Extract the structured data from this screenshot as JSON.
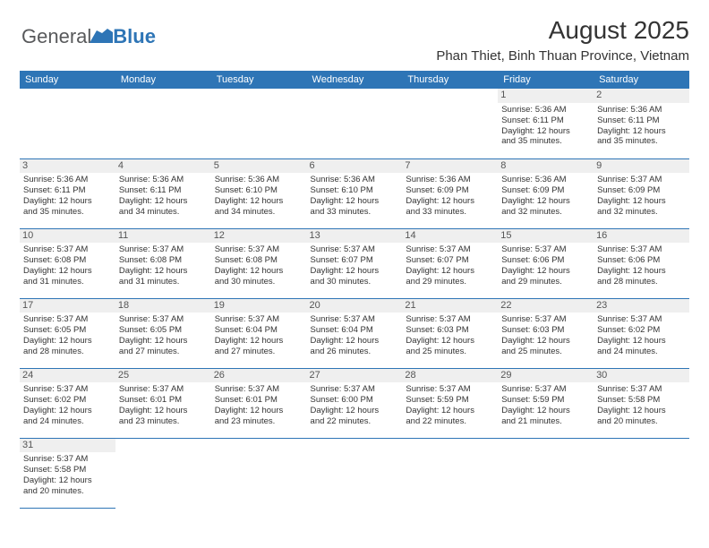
{
  "logo": {
    "part1": "General",
    "part2": "Blue"
  },
  "header": {
    "month_title": "August 2025",
    "location": "Phan Thiet, Binh Thuan Province, Vietnam"
  },
  "colors": {
    "header_bg": "#2e75b6",
    "header_text": "#ffffff",
    "daynum_bg": "#efefef",
    "border": "#2e75b6",
    "text": "#333333"
  },
  "day_headers": [
    "Sunday",
    "Monday",
    "Tuesday",
    "Wednesday",
    "Thursday",
    "Friday",
    "Saturday"
  ],
  "weeks": [
    [
      {
        "day": "",
        "sunrise": "",
        "sunset": "",
        "daylight1": "",
        "daylight2": ""
      },
      {
        "day": "",
        "sunrise": "",
        "sunset": "",
        "daylight1": "",
        "daylight2": ""
      },
      {
        "day": "",
        "sunrise": "",
        "sunset": "",
        "daylight1": "",
        "daylight2": ""
      },
      {
        "day": "",
        "sunrise": "",
        "sunset": "",
        "daylight1": "",
        "daylight2": ""
      },
      {
        "day": "",
        "sunrise": "",
        "sunset": "",
        "daylight1": "",
        "daylight2": ""
      },
      {
        "day": "1",
        "sunrise": "Sunrise: 5:36 AM",
        "sunset": "Sunset: 6:11 PM",
        "daylight1": "Daylight: 12 hours",
        "daylight2": "and 35 minutes."
      },
      {
        "day": "2",
        "sunrise": "Sunrise: 5:36 AM",
        "sunset": "Sunset: 6:11 PM",
        "daylight1": "Daylight: 12 hours",
        "daylight2": "and 35 minutes."
      }
    ],
    [
      {
        "day": "3",
        "sunrise": "Sunrise: 5:36 AM",
        "sunset": "Sunset: 6:11 PM",
        "daylight1": "Daylight: 12 hours",
        "daylight2": "and 35 minutes."
      },
      {
        "day": "4",
        "sunrise": "Sunrise: 5:36 AM",
        "sunset": "Sunset: 6:11 PM",
        "daylight1": "Daylight: 12 hours",
        "daylight2": "and 34 minutes."
      },
      {
        "day": "5",
        "sunrise": "Sunrise: 5:36 AM",
        "sunset": "Sunset: 6:10 PM",
        "daylight1": "Daylight: 12 hours",
        "daylight2": "and 34 minutes."
      },
      {
        "day": "6",
        "sunrise": "Sunrise: 5:36 AM",
        "sunset": "Sunset: 6:10 PM",
        "daylight1": "Daylight: 12 hours",
        "daylight2": "and 33 minutes."
      },
      {
        "day": "7",
        "sunrise": "Sunrise: 5:36 AM",
        "sunset": "Sunset: 6:09 PM",
        "daylight1": "Daylight: 12 hours",
        "daylight2": "and 33 minutes."
      },
      {
        "day": "8",
        "sunrise": "Sunrise: 5:36 AM",
        "sunset": "Sunset: 6:09 PM",
        "daylight1": "Daylight: 12 hours",
        "daylight2": "and 32 minutes."
      },
      {
        "day": "9",
        "sunrise": "Sunrise: 5:37 AM",
        "sunset": "Sunset: 6:09 PM",
        "daylight1": "Daylight: 12 hours",
        "daylight2": "and 32 minutes."
      }
    ],
    [
      {
        "day": "10",
        "sunrise": "Sunrise: 5:37 AM",
        "sunset": "Sunset: 6:08 PM",
        "daylight1": "Daylight: 12 hours",
        "daylight2": "and 31 minutes."
      },
      {
        "day": "11",
        "sunrise": "Sunrise: 5:37 AM",
        "sunset": "Sunset: 6:08 PM",
        "daylight1": "Daylight: 12 hours",
        "daylight2": "and 31 minutes."
      },
      {
        "day": "12",
        "sunrise": "Sunrise: 5:37 AM",
        "sunset": "Sunset: 6:08 PM",
        "daylight1": "Daylight: 12 hours",
        "daylight2": "and 30 minutes."
      },
      {
        "day": "13",
        "sunrise": "Sunrise: 5:37 AM",
        "sunset": "Sunset: 6:07 PM",
        "daylight1": "Daylight: 12 hours",
        "daylight2": "and 30 minutes."
      },
      {
        "day": "14",
        "sunrise": "Sunrise: 5:37 AM",
        "sunset": "Sunset: 6:07 PM",
        "daylight1": "Daylight: 12 hours",
        "daylight2": "and 29 minutes."
      },
      {
        "day": "15",
        "sunrise": "Sunrise: 5:37 AM",
        "sunset": "Sunset: 6:06 PM",
        "daylight1": "Daylight: 12 hours",
        "daylight2": "and 29 minutes."
      },
      {
        "day": "16",
        "sunrise": "Sunrise: 5:37 AM",
        "sunset": "Sunset: 6:06 PM",
        "daylight1": "Daylight: 12 hours",
        "daylight2": "and 28 minutes."
      }
    ],
    [
      {
        "day": "17",
        "sunrise": "Sunrise: 5:37 AM",
        "sunset": "Sunset: 6:05 PM",
        "daylight1": "Daylight: 12 hours",
        "daylight2": "and 28 minutes."
      },
      {
        "day": "18",
        "sunrise": "Sunrise: 5:37 AM",
        "sunset": "Sunset: 6:05 PM",
        "daylight1": "Daylight: 12 hours",
        "daylight2": "and 27 minutes."
      },
      {
        "day": "19",
        "sunrise": "Sunrise: 5:37 AM",
        "sunset": "Sunset: 6:04 PM",
        "daylight1": "Daylight: 12 hours",
        "daylight2": "and 27 minutes."
      },
      {
        "day": "20",
        "sunrise": "Sunrise: 5:37 AM",
        "sunset": "Sunset: 6:04 PM",
        "daylight1": "Daylight: 12 hours",
        "daylight2": "and 26 minutes."
      },
      {
        "day": "21",
        "sunrise": "Sunrise: 5:37 AM",
        "sunset": "Sunset: 6:03 PM",
        "daylight1": "Daylight: 12 hours",
        "daylight2": "and 25 minutes."
      },
      {
        "day": "22",
        "sunrise": "Sunrise: 5:37 AM",
        "sunset": "Sunset: 6:03 PM",
        "daylight1": "Daylight: 12 hours",
        "daylight2": "and 25 minutes."
      },
      {
        "day": "23",
        "sunrise": "Sunrise: 5:37 AM",
        "sunset": "Sunset: 6:02 PM",
        "daylight1": "Daylight: 12 hours",
        "daylight2": "and 24 minutes."
      }
    ],
    [
      {
        "day": "24",
        "sunrise": "Sunrise: 5:37 AM",
        "sunset": "Sunset: 6:02 PM",
        "daylight1": "Daylight: 12 hours",
        "daylight2": "and 24 minutes."
      },
      {
        "day": "25",
        "sunrise": "Sunrise: 5:37 AM",
        "sunset": "Sunset: 6:01 PM",
        "daylight1": "Daylight: 12 hours",
        "daylight2": "and 23 minutes."
      },
      {
        "day": "26",
        "sunrise": "Sunrise: 5:37 AM",
        "sunset": "Sunset: 6:01 PM",
        "daylight1": "Daylight: 12 hours",
        "daylight2": "and 23 minutes."
      },
      {
        "day": "27",
        "sunrise": "Sunrise: 5:37 AM",
        "sunset": "Sunset: 6:00 PM",
        "daylight1": "Daylight: 12 hours",
        "daylight2": "and 22 minutes."
      },
      {
        "day": "28",
        "sunrise": "Sunrise: 5:37 AM",
        "sunset": "Sunset: 5:59 PM",
        "daylight1": "Daylight: 12 hours",
        "daylight2": "and 22 minutes."
      },
      {
        "day": "29",
        "sunrise": "Sunrise: 5:37 AM",
        "sunset": "Sunset: 5:59 PM",
        "daylight1": "Daylight: 12 hours",
        "daylight2": "and 21 minutes."
      },
      {
        "day": "30",
        "sunrise": "Sunrise: 5:37 AM",
        "sunset": "Sunset: 5:58 PM",
        "daylight1": "Daylight: 12 hours",
        "daylight2": "and 20 minutes."
      }
    ],
    [
      {
        "day": "31",
        "sunrise": "Sunrise: 5:37 AM",
        "sunset": "Sunset: 5:58 PM",
        "daylight1": "Daylight: 12 hours",
        "daylight2": "and 20 minutes."
      },
      {
        "day": "",
        "sunrise": "",
        "sunset": "",
        "daylight1": "",
        "daylight2": ""
      },
      {
        "day": "",
        "sunrise": "",
        "sunset": "",
        "daylight1": "",
        "daylight2": ""
      },
      {
        "day": "",
        "sunrise": "",
        "sunset": "",
        "daylight1": "",
        "daylight2": ""
      },
      {
        "day": "",
        "sunrise": "",
        "sunset": "",
        "daylight1": "",
        "daylight2": ""
      },
      {
        "day": "",
        "sunrise": "",
        "sunset": "",
        "daylight1": "",
        "daylight2": ""
      },
      {
        "day": "",
        "sunrise": "",
        "sunset": "",
        "daylight1": "",
        "daylight2": ""
      }
    ]
  ]
}
